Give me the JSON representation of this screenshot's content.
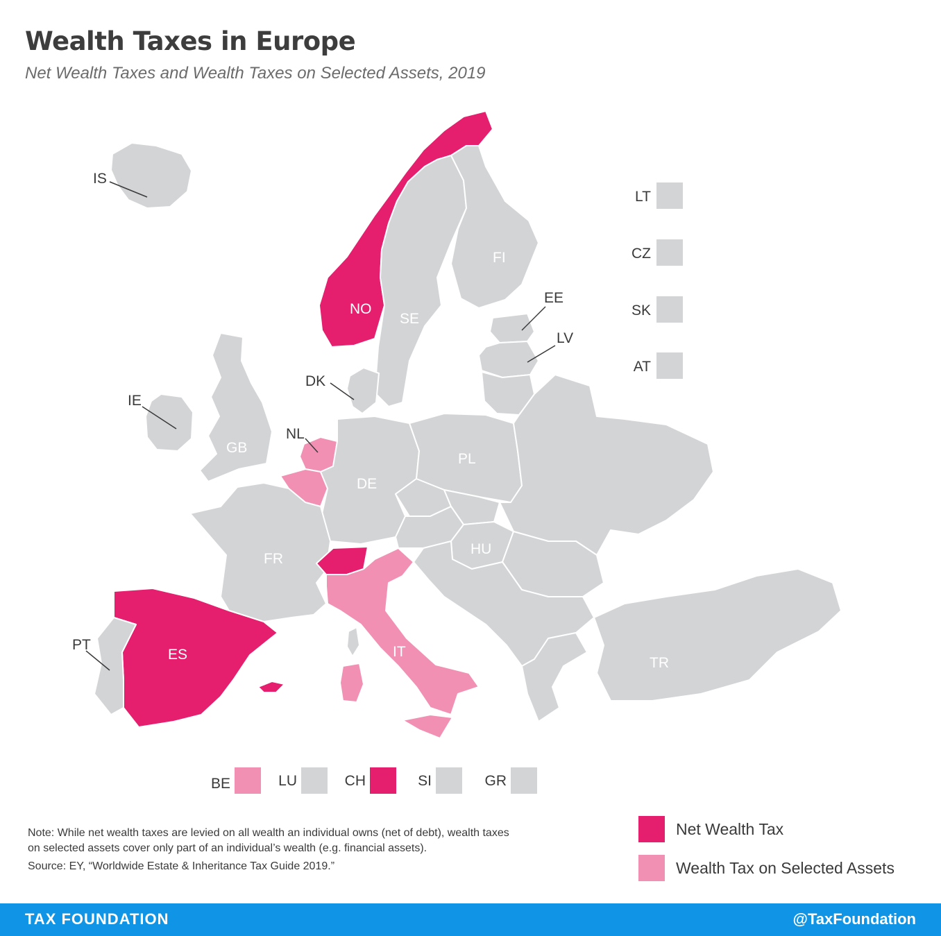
{
  "title": "Wealth Taxes in Europe",
  "subtitle": "Net Wealth Taxes and Wealth Taxes on Selected Assets, 2019",
  "colors": {
    "net_wealth_tax": "#e61e6e",
    "selected_assets": "#f290b4",
    "no_tax": "#d3d4d6",
    "footer": "#0f94e6"
  },
  "countries": [
    {
      "code": "NO",
      "category": "net_wealth_tax"
    },
    {
      "code": "SE",
      "category": "none"
    },
    {
      "code": "FI",
      "category": "none"
    },
    {
      "code": "IS",
      "category": "none"
    },
    {
      "code": "IE",
      "category": "none"
    },
    {
      "code": "GB",
      "category": "none"
    },
    {
      "code": "NL",
      "category": "selected_assets"
    },
    {
      "code": "BE",
      "category": "selected_assets"
    },
    {
      "code": "DK",
      "category": "none"
    },
    {
      "code": "DE",
      "category": "none"
    },
    {
      "code": "PL",
      "category": "none"
    },
    {
      "code": "FR",
      "category": "none"
    },
    {
      "code": "CH",
      "category": "net_wealth_tax"
    },
    {
      "code": "IT",
      "category": "selected_assets"
    },
    {
      "code": "ES",
      "category": "net_wealth_tax"
    },
    {
      "code": "PT",
      "category": "none"
    },
    {
      "code": "HU",
      "category": "none"
    },
    {
      "code": "TR",
      "category": "none"
    },
    {
      "code": "EE",
      "category": "none"
    },
    {
      "code": "LV",
      "category": "none"
    }
  ],
  "side_boxes": [
    {
      "code": "LT",
      "category": "none"
    },
    {
      "code": "CZ",
      "category": "none"
    },
    {
      "code": "SK",
      "category": "none"
    },
    {
      "code": "AT",
      "category": "none"
    }
  ],
  "bottom_boxes": [
    {
      "code": "BE",
      "category": "selected_assets"
    },
    {
      "code": "LU",
      "category": "none"
    },
    {
      "code": "CH",
      "category": "net_wealth_tax"
    },
    {
      "code": "SI",
      "category": "none"
    },
    {
      "code": "GR",
      "category": "none"
    }
  ],
  "note": {
    "line1": "Note: While net wealth taxes are levied on all wealth an individual owns (net of debt), wealth taxes",
    "line2": "on selected assets cover only part of an individual’s wealth (e.g. financial assets).",
    "source": "Source: EY, “Worldwide Estate & Inheritance Tax Guide 2019.”"
  },
  "legend": {
    "net_wealth_tax": "Net Wealth Tax",
    "selected_assets": "Wealth Tax on Selected Assets"
  },
  "footer": {
    "brand": "TAX FOUNDATION",
    "handle": "@TaxFoundation"
  }
}
